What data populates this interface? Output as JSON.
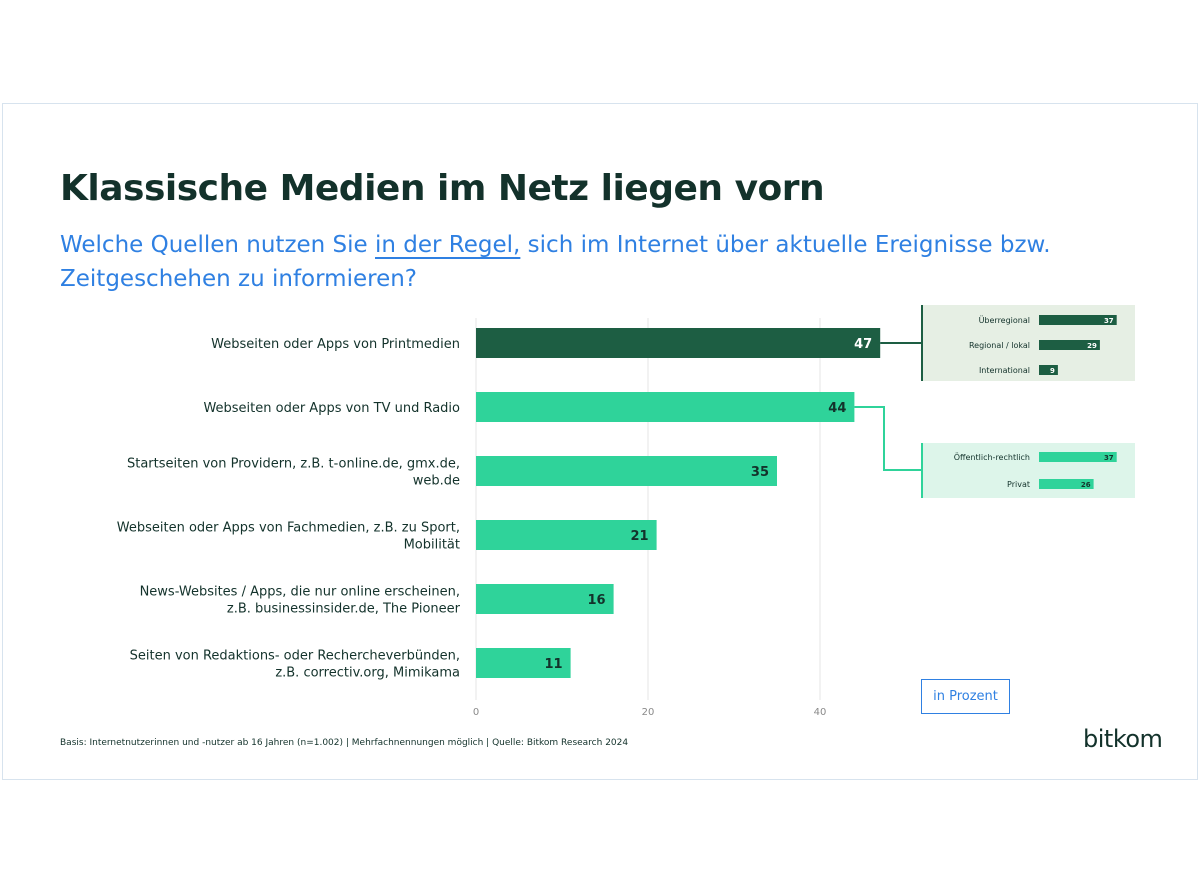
{
  "header": {
    "title": "Klassische Medien im Netz liegen vorn",
    "subtitle_before": "Welche Quellen nutzen Sie ",
    "subtitle_emph": "in der Regel,",
    "subtitle_after": " sich im Internet über aktuelle Ereignisse bzw. Zeitgeschehen zu informieren?"
  },
  "chart_data": {
    "type": "bar",
    "orientation": "horizontal",
    "unit_label": "in Prozent",
    "categories": [
      [
        "Webseiten oder Apps von Printmedien"
      ],
      [
        "Webseiten oder Apps von TV und Radio"
      ],
      [
        "Startseiten von Providern, z.B. t-online.de, gmx.de,",
        "web.de"
      ],
      [
        "Webseiten oder Apps von Fachmedien, z.B. zu Sport,",
        "Mobilität"
      ],
      [
        "News-Websites / Apps, die nur online erscheinen,",
        "z.B. businessinsider.de, The Pioneer"
      ],
      [
        "Seiten von Redaktions- oder Rechercheverbünden,",
        "z.B. correctiv.org, Mimikama"
      ]
    ],
    "values": [
      47,
      44,
      35,
      21,
      16,
      11
    ],
    "highlight_index": 0,
    "xlim": [
      0,
      50
    ],
    "xticks": [
      0,
      20,
      40
    ],
    "grid": true,
    "breakdowns": [
      {
        "parent_index": 0,
        "items": [
          {
            "label": "Überregional",
            "value": 37
          },
          {
            "label": "Regional / lokal",
            "value": 29
          },
          {
            "label": "International",
            "value": 9
          }
        ]
      },
      {
        "parent_index": 1,
        "items": [
          {
            "label": "Öffentlich-rechtlich",
            "value": 37
          },
          {
            "label": "Privat",
            "value": 26
          }
        ]
      }
    ]
  },
  "colors": {
    "dark_green": "#1d5e43",
    "mint": "#2fd39a",
    "panel_dark_bg": "#e6efe4",
    "panel_mint_bg": "#ddf5ea",
    "label_text": "#13322b",
    "grid": "#e6e6e6",
    "accent_blue": "#2f80e2"
  },
  "footer": {
    "note": "Basis: Internetnutzerinnen und -nutzer ab 16 Jahren (n=1.002) | Mehrfachnennungen möglich | Quelle: Bitkom Research 2024",
    "brand": "bitkom"
  }
}
